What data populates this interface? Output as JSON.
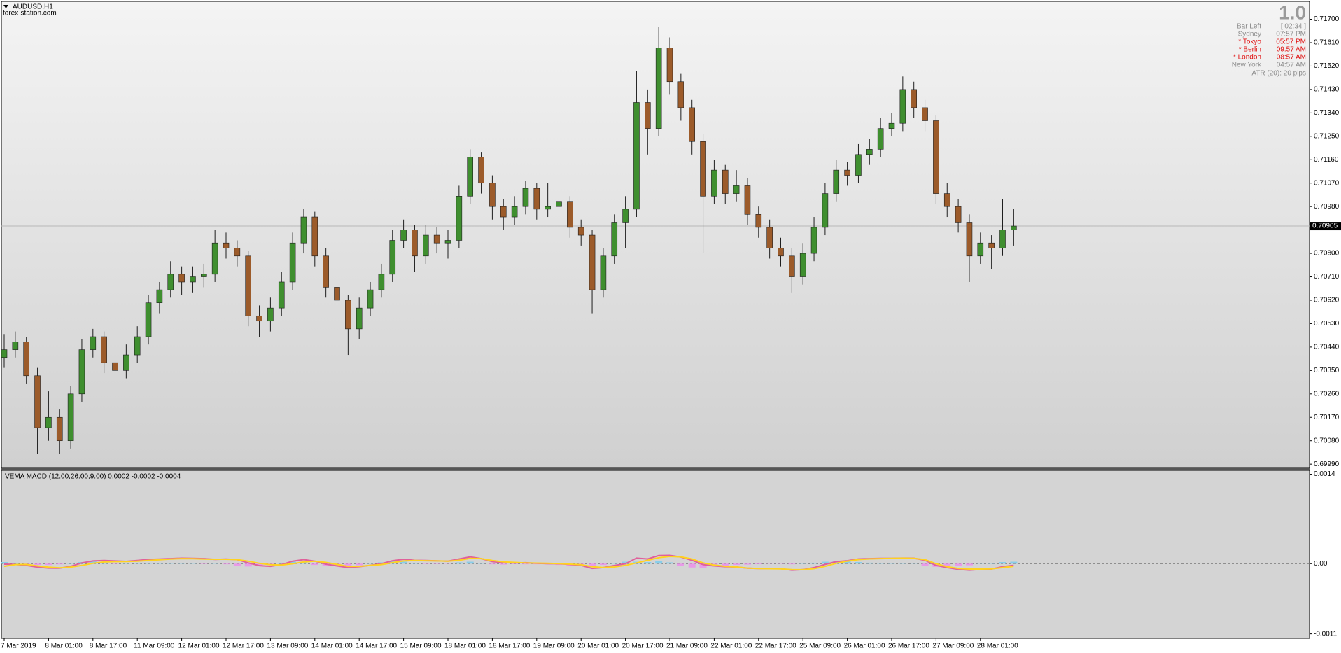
{
  "header": {
    "symbol": "AUDUSD,H1",
    "source": "forex-station.com"
  },
  "info_panel": {
    "big_number": "1.0",
    "rows": [
      {
        "label": "Bar Left",
        "value": "[ 02:34 ]",
        "color": "#8c8c8c"
      },
      {
        "label": "Sydney",
        "value": "07:57 PM",
        "color": "#8c8c8c"
      },
      {
        "label": "* Tokyo",
        "value": "05:57 PM",
        "color": "#e01010"
      },
      {
        "label": "* Berlin",
        "value": "09:57 AM",
        "color": "#e01010"
      },
      {
        "label": "* London",
        "value": "08:57 AM",
        "color": "#e01010"
      },
      {
        "label": "New York",
        "value": "04:57 AM",
        "color": "#8c8c8c"
      }
    ],
    "atr": "ATR (20): 20 pips"
  },
  "chart_data": [
    {
      "type": "candlestick",
      "bull_color": "#3f8f2f",
      "bear_color": "#9c5b2a",
      "wick_color": "#1e1e1e",
      "ylim": [
        0.69977,
        0.71766
      ],
      "yticks": [
        {
          "value": 0.717,
          "label": "0.71700"
        },
        {
          "value": 0.7161,
          "label": "0.71610"
        },
        {
          "value": 0.7152,
          "label": "0.71520"
        },
        {
          "value": 0.7143,
          "label": "0.71430"
        },
        {
          "value": 0.7134,
          "label": "0.71340"
        },
        {
          "value": 0.7125,
          "label": "0.71250"
        },
        {
          "value": 0.7116,
          "label": "0.71160"
        },
        {
          "value": 0.7107,
          "label": "0.71070"
        },
        {
          "value": 0.7098,
          "label": "0.70980"
        },
        {
          "value": 0.708,
          "label": "0.70800"
        },
        {
          "value": 0.7071,
          "label": "0.70710"
        },
        {
          "value": 0.7062,
          "label": "0.70620"
        },
        {
          "value": 0.7053,
          "label": "0.70530"
        },
        {
          "value": 0.7044,
          "label": "0.70440"
        },
        {
          "value": 0.7035,
          "label": "0.70350"
        },
        {
          "value": 0.7026,
          "label": "0.70260"
        },
        {
          "value": 0.7017,
          "label": "0.70170"
        },
        {
          "value": 0.7008,
          "label": "0.70080"
        },
        {
          "value": 0.6999,
          "label": "0.69990"
        }
      ],
      "current_price": 0.70905,
      "ohlc": [
        [
          0.704,
          0.7049,
          0.7036,
          0.7043
        ],
        [
          0.7043,
          0.705,
          0.704,
          0.7046
        ],
        [
          0.7046,
          0.7048,
          0.703,
          0.7033
        ],
        [
          0.7033,
          0.7036,
          0.7003,
          0.7013
        ],
        [
          0.7013,
          0.7027,
          0.7008,
          0.7017
        ],
        [
          0.7017,
          0.702,
          0.7003,
          0.7008
        ],
        [
          0.7008,
          0.7029,
          0.7005,
          0.7026
        ],
        [
          0.7026,
          0.7047,
          0.7023,
          0.7043
        ],
        [
          0.7043,
          0.7051,
          0.704,
          0.7048
        ],
        [
          0.7048,
          0.705,
          0.7034,
          0.7038
        ],
        [
          0.7038,
          0.7041,
          0.7028,
          0.7035
        ],
        [
          0.7035,
          0.7045,
          0.7032,
          0.7041
        ],
        [
          0.7041,
          0.7052,
          0.7038,
          0.7048
        ],
        [
          0.7048,
          0.7064,
          0.7045,
          0.7061
        ],
        [
          0.7061,
          0.7069,
          0.7057,
          0.7066
        ],
        [
          0.7066,
          0.7077,
          0.7063,
          0.7072
        ],
        [
          0.7072,
          0.7075,
          0.7064,
          0.7069
        ],
        [
          0.7069,
          0.7075,
          0.7065,
          0.7071
        ],
        [
          0.7071,
          0.7076,
          0.7067,
          0.7072
        ],
        [
          0.7072,
          0.7089,
          0.7069,
          0.7084
        ],
        [
          0.7084,
          0.7088,
          0.7078,
          0.7082
        ],
        [
          0.7082,
          0.7085,
          0.7075,
          0.7079
        ],
        [
          0.7079,
          0.7081,
          0.7052,
          0.7056
        ],
        [
          0.7056,
          0.706,
          0.7048,
          0.7054
        ],
        [
          0.7054,
          0.7063,
          0.705,
          0.7059
        ],
        [
          0.7059,
          0.7073,
          0.7056,
          0.7069
        ],
        [
          0.7069,
          0.7088,
          0.7066,
          0.7084
        ],
        [
          0.7084,
          0.7097,
          0.708,
          0.7094
        ],
        [
          0.7094,
          0.7096,
          0.7075,
          0.7079
        ],
        [
          0.7079,
          0.7082,
          0.7063,
          0.7067
        ],
        [
          0.7067,
          0.707,
          0.7058,
          0.7062
        ],
        [
          0.7062,
          0.7064,
          0.7041,
          0.7051
        ],
        [
          0.7051,
          0.7063,
          0.7047,
          0.7059
        ],
        [
          0.7059,
          0.7069,
          0.7056,
          0.7066
        ],
        [
          0.7066,
          0.7076,
          0.7063,
          0.7072
        ],
        [
          0.7072,
          0.7089,
          0.7069,
          0.7085
        ],
        [
          0.7085,
          0.7093,
          0.7082,
          0.7089
        ],
        [
          0.7089,
          0.7091,
          0.7073,
          0.7079
        ],
        [
          0.7079,
          0.7091,
          0.7076,
          0.7087
        ],
        [
          0.7087,
          0.709,
          0.708,
          0.7084
        ],
        [
          0.7084,
          0.7089,
          0.7078,
          0.7085
        ],
        [
          0.7085,
          0.7106,
          0.7082,
          0.7102
        ],
        [
          0.7102,
          0.712,
          0.7099,
          0.7117
        ],
        [
          0.7117,
          0.7119,
          0.7103,
          0.7107
        ],
        [
          0.7107,
          0.711,
          0.7093,
          0.7098
        ],
        [
          0.7098,
          0.7101,
          0.7089,
          0.7094
        ],
        [
          0.7094,
          0.7102,
          0.7091,
          0.7098
        ],
        [
          0.7098,
          0.7108,
          0.7095,
          0.7105
        ],
        [
          0.7105,
          0.7107,
          0.7093,
          0.7097
        ],
        [
          0.7097,
          0.7107,
          0.7094,
          0.7098
        ],
        [
          0.7098,
          0.7104,
          0.7095,
          0.71
        ],
        [
          0.71,
          0.7102,
          0.7086,
          0.709
        ],
        [
          0.709,
          0.7093,
          0.7083,
          0.7087
        ],
        [
          0.7087,
          0.7089,
          0.7057,
          0.7066
        ],
        [
          0.7066,
          0.7082,
          0.7063,
          0.7079
        ],
        [
          0.7079,
          0.7095,
          0.7076,
          0.7092
        ],
        [
          0.7092,
          0.7102,
          0.7082,
          0.7097
        ],
        [
          0.7097,
          0.715,
          0.7094,
          0.7138
        ],
        [
          0.7138,
          0.7143,
          0.7118,
          0.7128
        ],
        [
          0.7128,
          0.7167,
          0.7125,
          0.7159
        ],
        [
          0.7159,
          0.7163,
          0.7141,
          0.7146
        ],
        [
          0.7146,
          0.7149,
          0.7131,
          0.7136
        ],
        [
          0.7136,
          0.7139,
          0.7118,
          0.7123
        ],
        [
          0.7123,
          0.7126,
          0.708,
          0.7102
        ],
        [
          0.7102,
          0.7116,
          0.7099,
          0.7112
        ],
        [
          0.7112,
          0.7114,
          0.7099,
          0.7103
        ],
        [
          0.7103,
          0.7112,
          0.71,
          0.7106
        ],
        [
          0.7106,
          0.7109,
          0.7091,
          0.7095
        ],
        [
          0.7095,
          0.7098,
          0.7086,
          0.709
        ],
        [
          0.709,
          0.7093,
          0.7078,
          0.7082
        ],
        [
          0.7082,
          0.7086,
          0.7075,
          0.7079
        ],
        [
          0.7079,
          0.7082,
          0.7065,
          0.7071
        ],
        [
          0.7071,
          0.7084,
          0.7068,
          0.708
        ],
        [
          0.708,
          0.7094,
          0.7077,
          0.709
        ],
        [
          0.709,
          0.7107,
          0.7087,
          0.7103
        ],
        [
          0.7103,
          0.7116,
          0.71,
          0.7112
        ],
        [
          0.7112,
          0.7115,
          0.7106,
          0.711
        ],
        [
          0.711,
          0.7122,
          0.7107,
          0.7118
        ],
        [
          0.7118,
          0.7124,
          0.7114,
          0.712
        ],
        [
          0.712,
          0.7132,
          0.7117,
          0.7128
        ],
        [
          0.7128,
          0.7134,
          0.7125,
          0.713
        ],
        [
          0.713,
          0.7148,
          0.7127,
          0.7143
        ],
        [
          0.7143,
          0.7146,
          0.7132,
          0.7136
        ],
        [
          0.7136,
          0.7139,
          0.7127,
          0.7131
        ],
        [
          0.7131,
          0.7133,
          0.7099,
          0.7103
        ],
        [
          0.7103,
          0.7107,
          0.7094,
          0.7098
        ],
        [
          0.7098,
          0.7101,
          0.7088,
          0.7092
        ],
        [
          0.7092,
          0.7095,
          0.7069,
          0.7079
        ],
        [
          0.7079,
          0.7088,
          0.7076,
          0.7084
        ],
        [
          0.7084,
          0.7087,
          0.7074,
          0.7082
        ],
        [
          0.7082,
          0.7101,
          0.7079,
          0.7089
        ],
        [
          0.7089,
          0.7097,
          0.7083,
          0.70905
        ]
      ]
    },
    {
      "type": "macd",
      "title": "VEMA MACD (12.00,26.00,9.00) 0.0002 -0.0002 -0.0004",
      "ylim": [
        -0.00117,
        0.00145
      ],
      "yticks": [
        0.0014,
        {
          "value": 0,
          "label": "0.00"
        },
        -0.0011
      ],
      "categories": [
        "7 Mar 2019",
        null,
        null,
        null,
        "8 Mar 01:00",
        null,
        null,
        null,
        "8 Mar 17:00",
        null,
        null,
        null,
        "11 Mar 09:00",
        null,
        null,
        null,
        "12 Mar 01:00",
        null,
        null,
        null,
        "12 Mar 17:00",
        null,
        null,
        null,
        "13 Mar 09:00",
        null,
        null,
        null,
        "14 Mar 01:00",
        null,
        null,
        null,
        "14 Mar 17:00",
        null,
        null,
        null,
        "15 Mar 09:00",
        null,
        null,
        null,
        "18 Mar 01:00",
        null,
        null,
        null,
        "18 Mar 17:00",
        null,
        null,
        null,
        "19 Mar 09:00",
        null,
        null,
        null,
        "20 Mar 01:00",
        null,
        null,
        null,
        "20 Mar 17:00",
        null,
        null,
        null,
        "21 Mar 09:00",
        null,
        null,
        null,
        "22 Mar 01:00",
        null,
        null,
        null,
        "22 Mar 17:00",
        null,
        null,
        null,
        "25 Mar 09:00",
        null,
        null,
        null,
        "26 Mar 01:00",
        null,
        null,
        null,
        "26 Mar 17:00",
        null,
        null,
        null,
        "27 Mar 09:00",
        null,
        null,
        null,
        "28 Mar 01:00",
        null,
        null,
        null
      ],
      "histogram": {
        "up_color": "#87ceeb",
        "down_color": "#e89ae8",
        "values": [
          2.5e-05,
          1.5e-05,
          -1e-05,
          -2e-05,
          -2e-05,
          -1e-05,
          1e-05,
          2.5e-05,
          3.5e-05,
          1.5e-05,
          -5e-06,
          5e-06,
          1e-05,
          1.2e-05,
          8e-06,
          1e-05,
          5e-06,
          3e-06,
          -5e-06,
          5e-06,
          -1e-05,
          -3e-05,
          -4.5e-05,
          -4e-05,
          -2e-05,
          1.5e-05,
          3e-05,
          2e-05,
          -2e-05,
          -3.5e-05,
          -4e-05,
          -4.5e-05,
          -2.5e-05,
          5e-06,
          2e-05,
          3.8e-05,
          3e-05,
          5e-06,
          -5e-06,
          -5e-06,
          -3e-06,
          2e-05,
          3e-05,
          1e-05,
          -1e-05,
          -1.5e-05,
          -5e-06,
          -1e-05,
          -1e-05,
          -1.2e-05,
          -2e-05,
          -3e-05,
          -4e-05,
          -3.5e-05,
          -2e-05,
          1e-05,
          3e-05,
          3e-05,
          2.5e-05,
          4.5e-05,
          2e-05,
          -4e-05,
          -6e-05,
          -6.5e-05,
          -4.5e-05,
          -3e-05,
          -2e-05,
          -1.5e-05,
          -8e-06,
          -2e-06,
          -3e-06,
          -1e-05,
          5e-06,
          1.5e-05,
          3e-05,
          4e-05,
          3.5e-05,
          2.5e-05,
          1.5e-05,
          1e-05,
          1e-05,
          3e-06,
          2e-06,
          -3e-05,
          -5e-05,
          -4e-05,
          -3e-05,
          -2.5e-05,
          2e-06,
          1e-05,
          2.5e-05,
          3e-05
        ]
      },
      "series": [
        {
          "color": "#e0609a",
          "values": [
            -8e-06,
            -1.2e-05,
            -2.8e-05,
            -5.5e-05,
            -6.9e-05,
            -7.1e-05,
            -4.2e-05,
            1.2e-05,
            4.2e-05,
            5e-05,
            4.2e-05,
            3.6e-05,
            5e-05,
            6.6e-05,
            7.1e-05,
            7.9e-05,
            8.5e-05,
            8.2e-05,
            7.9e-05,
            6.6e-05,
            7.1e-05,
            6.3e-05,
            1.2e-05,
            -3.1e-05,
            -4.2e-05,
            -1.5e-05,
            3.9e-05,
            6.3e-05,
            3.9e-05,
            -8e-06,
            -3.5e-05,
            -6.2e-05,
            -4.8e-05,
            -2.6e-05,
            -1e-06,
            4.6e-05,
            6.9e-05,
            5.2e-05,
            5e-05,
            4.4e-05,
            3.9e-05,
            7.3e-05,
            0.000106,
            7.9e-05,
            3.2e-05,
            1.5e-05,
            1.2e-05,
            1.5e-05,
            5e-06,
            1e-06,
            -1e-06,
            -1.2e-05,
            -2.8e-05,
            -7.5e-05,
            -6.2e-05,
            -2.8e-05,
            -1e-06,
            8.6e-05,
            7.3e-05,
            0.000126,
            0.000129,
            0.000103,
            5.2e-05,
            -1.5e-05,
            -3.5e-05,
            -4.8e-05,
            -5.2e-05,
            -7.1e-05,
            -7.7e-05,
            -7.7e-05,
            -7.9e-05,
            -0.000102,
            -9.3e-05,
            -6.2e-05,
            -1.2e-05,
            3.2e-05,
            4.6e-05,
            7.3e-05,
            7.9e-05,
            8.2e-05,
            8.2e-05,
            8.6e-05,
            8.5e-05,
            5.2e-05,
            -2.8e-05,
            -6.2e-05,
            -8.9e-05,
            -0.000102,
            -9.1e-05,
            -8.5e-05,
            -4.8e-05,
            -2.6e-05
          ]
        },
        {
          "color": "#ffd21f",
          "values": [
            -4.2e-05,
            -1.5e-05,
            -1.2e-05,
            -3.5e-05,
            -5.5e-05,
            -6.6e-05,
            -5.5e-05,
            -2.8e-05,
            5e-06,
            2.6e-05,
            3.2e-05,
            3.4e-05,
            3.9e-05,
            5e-05,
            6e-05,
            7.1e-05,
            7.9e-05,
            7.7e-05,
            7.1e-05,
            6.9e-05,
            6.9e-05,
            6.3e-05,
            3.9e-05,
            5e-06,
            -1.7e-05,
            -2.2e-05,
            -1e-06,
            2.6e-05,
            3.9e-05,
            1.9e-05,
            -1.2e-05,
            -4.2e-05,
            -4.2e-05,
            -2.8e-05,
            -1.5e-05,
            1.5e-05,
            4.2e-05,
            5e-05,
            4.6e-05,
            4.2e-05,
            3.9e-05,
            5.2e-05,
            8.2e-05,
            7.9e-05,
            5e-05,
            2.8e-05,
            1.9e-05,
            1.2e-05,
            9e-06,
            5e-06,
            1e-06,
            -8e-06,
            -1.7e-05,
            -4.8e-05,
            -6.2e-05,
            -5.2e-05,
            -2.8e-05,
            1.2e-05,
            5.2e-05,
            9.3e-05,
            0.000113,
            0.000106,
            7.3e-05,
            1.2e-05,
            -2.2e-05,
            -4.2e-05,
            -5.2e-05,
            -6.9e-05,
            -7.7e-05,
            -7.9e-05,
            -8.2e-05,
            -9.3e-05,
            -9.5e-05,
            -7.9e-05,
            -4.2e-05,
            5e-06,
            3.9e-05,
            6.3e-05,
            7.4e-05,
            7.9e-05,
            8.2e-05,
            8.5e-05,
            8.2e-05,
            6.3e-05,
            -1e-06,
            -4.8e-05,
            -7.5e-05,
            -8.5e-05,
            -8.5e-05,
            -8.2e-05,
            -6.2e-05,
            -4.2e-05
          ]
        }
      ]
    }
  ]
}
